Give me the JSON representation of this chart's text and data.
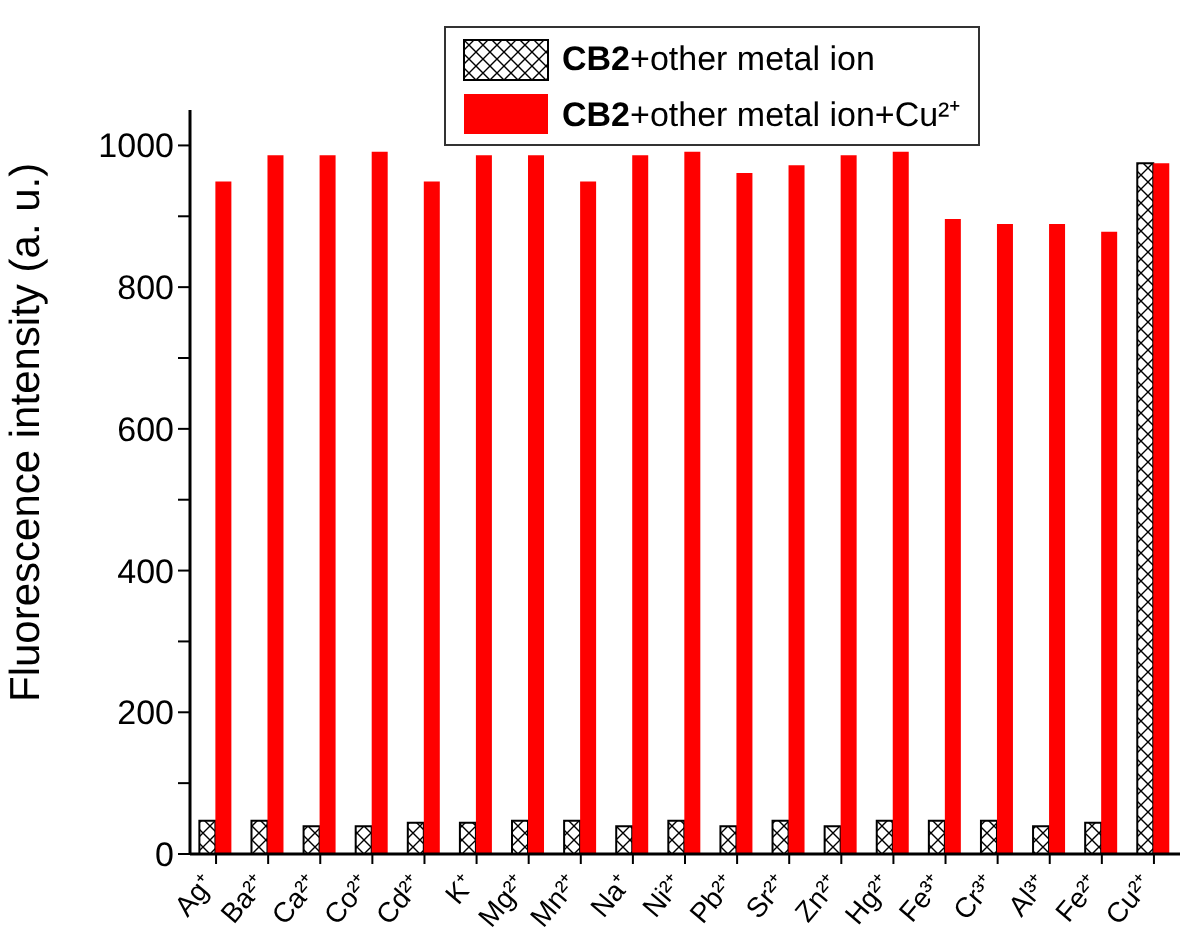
{
  "chart_data": {
    "type": "bar",
    "ylabel": "Fluorescence intensity (a. u.)",
    "categories": [
      "Ag⁺",
      "Ba²⁺",
      "Ca²⁺",
      "Co²⁺",
      "Cd²⁺",
      "K⁺",
      "Mg²⁺",
      "Mn²⁺",
      "Na⁺",
      "Ni²⁺",
      "Pb²⁺",
      "Sr²⁺",
      "Zn²⁺",
      "Hg²⁺",
      "Fe³⁺",
      "Cr³⁺",
      "Al³⁺",
      "Fe²⁺",
      "Cu²⁺"
    ],
    "series": [
      {
        "name": "CB2+other metal ion",
        "color": "#000000",
        "values": [
          47,
          47,
          39,
          39,
          44,
          44,
          47,
          47,
          39,
          47,
          39,
          47,
          39,
          47,
          47,
          47,
          39,
          44,
          975
        ]
      },
      {
        "name": "CB2+other metal ion+Cu²⁺",
        "color": "#ff0000",
        "values": [
          949,
          986,
          986,
          991,
          949,
          986,
          986,
          949,
          986,
          991,
          961,
          972,
          986,
          991,
          896,
          889,
          889,
          878,
          975
        ]
      }
    ],
    "ylim": [
      0,
      1050
    ],
    "yticks": [
      0,
      {
        "value": 100,
        "label": null
      },
      200,
      {
        "value": 300,
        "label": null
      },
      400,
      {
        "value": 500,
        "label": null
      },
      600,
      {
        "value": 700,
        "label": null
      },
      800,
      {
        "value": 900,
        "label": null
      },
      1000
    ],
    "legend": "top"
  }
}
